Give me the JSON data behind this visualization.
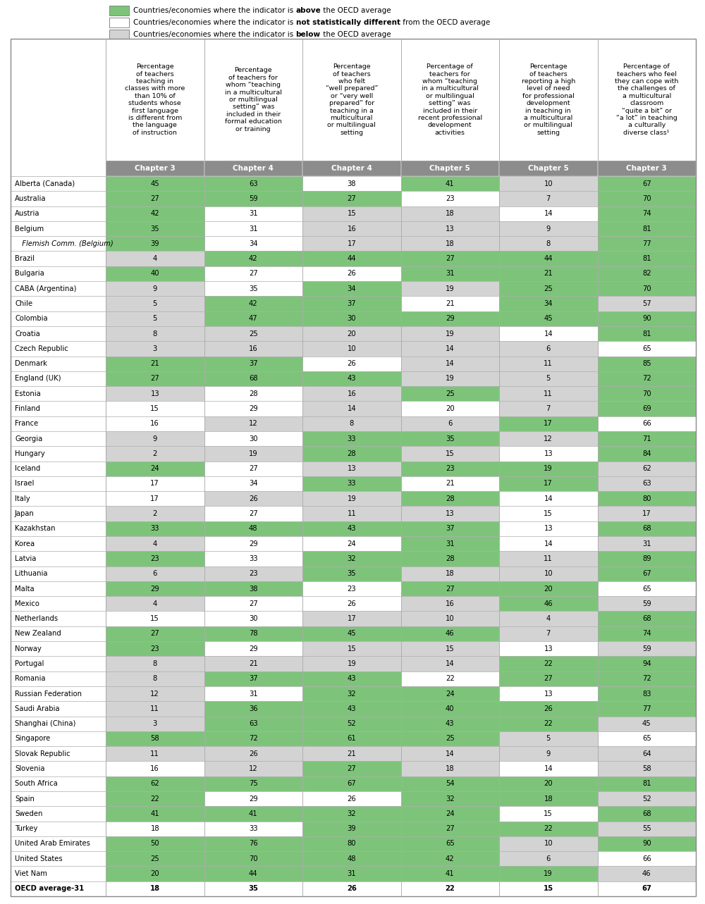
{
  "columns": [
    "Percentage\nof teachers\nteaching in\nclasses with more\nthan 10% of\nstudents whose\nfirst language\nis different from\nthe language\nof instruction",
    "Percentage\nof teachers for\nwhom “teaching\nin a multicultural\nor multilingual\nsetting” was\nincluded in their\nformal education\nor training",
    "Percentage\nof teachers\nwho felt\n“well prepared”\nor “very well\nprepared” for\nteaching in a\nmulticultural\nor multilingual\nsetting",
    "Percentage of\nteachers for\nwhom “teaching\nin a multicultural\nor multilingual\nsetting” was\nincluded in their\nrecent professional\ndevelopment\nactivities",
    "Percentage\nof teachers\nreporting a high\nlevel of need\nfor professional\ndevelopment\nin teaching in\na multicultural\nor multilingual\nsetting",
    "Percentage of\nteachers who feel\nthey can cope with\nthe challenges of\na multicultural\nclassroom\n“quite a bit” or\n“a lot” in teaching\na culturally\ndiverse class¹"
  ],
  "chapter_labels": [
    "Chapter 3",
    "Chapter 4",
    "Chapter 4",
    "Chapter 5",
    "Chapter 5",
    "Chapter 3"
  ],
  "rows": [
    {
      "country": "Alberta (Canada)",
      "values": [
        45,
        63,
        38,
        41,
        10,
        67
      ],
      "colors": [
        "#7DC47A",
        "#7DC47A",
        "#FFFFFF",
        "#7DC47A",
        "#D3D3D3",
        "#7DC47A"
      ],
      "italic": false,
      "bold": false
    },
    {
      "country": "Australia",
      "values": [
        27,
        59,
        27,
        23,
        7,
        70
      ],
      "colors": [
        "#7DC47A",
        "#7DC47A",
        "#7DC47A",
        "#FFFFFF",
        "#D3D3D3",
        "#7DC47A"
      ],
      "italic": false,
      "bold": false
    },
    {
      "country": "Austria",
      "values": [
        42,
        31,
        15,
        18,
        14,
        74
      ],
      "colors": [
        "#7DC47A",
        "#FFFFFF",
        "#D3D3D3",
        "#D3D3D3",
        "#FFFFFF",
        "#7DC47A"
      ],
      "italic": false,
      "bold": false
    },
    {
      "country": "Belgium",
      "values": [
        35,
        31,
        16,
        13,
        9,
        81
      ],
      "colors": [
        "#7DC47A",
        "#FFFFFF",
        "#D3D3D3",
        "#D3D3D3",
        "#D3D3D3",
        "#7DC47A"
      ],
      "italic": false,
      "bold": false
    },
    {
      "country": "  Flemish Comm. (Belgium)",
      "values": [
        39,
        34,
        17,
        18,
        8,
        77
      ],
      "colors": [
        "#7DC47A",
        "#FFFFFF",
        "#D3D3D3",
        "#D3D3D3",
        "#D3D3D3",
        "#7DC47A"
      ],
      "italic": true,
      "bold": false
    },
    {
      "country": "Brazil",
      "values": [
        4,
        42,
        44,
        27,
        44,
        81
      ],
      "colors": [
        "#D3D3D3",
        "#7DC47A",
        "#7DC47A",
        "#7DC47A",
        "#7DC47A",
        "#7DC47A"
      ],
      "italic": false,
      "bold": false
    },
    {
      "country": "Bulgaria",
      "values": [
        40,
        27,
        26,
        31,
        21,
        82
      ],
      "colors": [
        "#7DC47A",
        "#FFFFFF",
        "#FFFFFF",
        "#7DC47A",
        "#7DC47A",
        "#7DC47A"
      ],
      "italic": false,
      "bold": false
    },
    {
      "country": "CABA (Argentina)",
      "values": [
        9,
        35,
        34,
        19,
        25,
        70
      ],
      "colors": [
        "#D3D3D3",
        "#FFFFFF",
        "#7DC47A",
        "#D3D3D3",
        "#7DC47A",
        "#7DC47A"
      ],
      "italic": false,
      "bold": false
    },
    {
      "country": "Chile",
      "values": [
        5,
        42,
        37,
        21,
        34,
        57
      ],
      "colors": [
        "#D3D3D3",
        "#7DC47A",
        "#7DC47A",
        "#FFFFFF",
        "#7DC47A",
        "#D3D3D3"
      ],
      "italic": false,
      "bold": false
    },
    {
      "country": "Colombia",
      "values": [
        5,
        47,
        30,
        29,
        45,
        90
      ],
      "colors": [
        "#D3D3D3",
        "#7DC47A",
        "#7DC47A",
        "#7DC47A",
        "#7DC47A",
        "#7DC47A"
      ],
      "italic": false,
      "bold": false
    },
    {
      "country": "Croatia",
      "values": [
        8,
        25,
        20,
        19,
        14,
        81
      ],
      "colors": [
        "#D3D3D3",
        "#D3D3D3",
        "#D3D3D3",
        "#D3D3D3",
        "#FFFFFF",
        "#7DC47A"
      ],
      "italic": false,
      "bold": false
    },
    {
      "country": "Czech Republic",
      "values": [
        3,
        16,
        10,
        14,
        6,
        65
      ],
      "colors": [
        "#D3D3D3",
        "#D3D3D3",
        "#D3D3D3",
        "#D3D3D3",
        "#D3D3D3",
        "#FFFFFF"
      ],
      "italic": false,
      "bold": false
    },
    {
      "country": "Denmark",
      "values": [
        21,
        37,
        26,
        14,
        11,
        85
      ],
      "colors": [
        "#7DC47A",
        "#7DC47A",
        "#FFFFFF",
        "#D3D3D3",
        "#D3D3D3",
        "#7DC47A"
      ],
      "italic": false,
      "bold": false
    },
    {
      "country": "England (UK)",
      "values": [
        27,
        68,
        43,
        19,
        5,
        72
      ],
      "colors": [
        "#7DC47A",
        "#7DC47A",
        "#7DC47A",
        "#D3D3D3",
        "#D3D3D3",
        "#7DC47A"
      ],
      "italic": false,
      "bold": false
    },
    {
      "country": "Estonia",
      "values": [
        13,
        28,
        16,
        25,
        11,
        70
      ],
      "colors": [
        "#D3D3D3",
        "#FFFFFF",
        "#D3D3D3",
        "#7DC47A",
        "#D3D3D3",
        "#7DC47A"
      ],
      "italic": false,
      "bold": false
    },
    {
      "country": "Finland",
      "values": [
        15,
        29,
        14,
        20,
        7,
        69
      ],
      "colors": [
        "#FFFFFF",
        "#FFFFFF",
        "#D3D3D3",
        "#FFFFFF",
        "#D3D3D3",
        "#7DC47A"
      ],
      "italic": false,
      "bold": false
    },
    {
      "country": "France",
      "values": [
        16,
        12,
        8,
        6,
        17,
        66
      ],
      "colors": [
        "#FFFFFF",
        "#D3D3D3",
        "#D3D3D3",
        "#D3D3D3",
        "#7DC47A",
        "#FFFFFF"
      ],
      "italic": false,
      "bold": false
    },
    {
      "country": "Georgia",
      "values": [
        9,
        30,
        33,
        35,
        12,
        71
      ],
      "colors": [
        "#D3D3D3",
        "#FFFFFF",
        "#7DC47A",
        "#7DC47A",
        "#D3D3D3",
        "#7DC47A"
      ],
      "italic": false,
      "bold": false
    },
    {
      "country": "Hungary",
      "values": [
        2,
        19,
        28,
        15,
        13,
        84
      ],
      "colors": [
        "#D3D3D3",
        "#D3D3D3",
        "#7DC47A",
        "#D3D3D3",
        "#FFFFFF",
        "#7DC47A"
      ],
      "italic": false,
      "bold": false
    },
    {
      "country": "Iceland",
      "values": [
        24,
        27,
        13,
        23,
        19,
        62
      ],
      "colors": [
        "#7DC47A",
        "#FFFFFF",
        "#D3D3D3",
        "#7DC47A",
        "#7DC47A",
        "#D3D3D3"
      ],
      "italic": false,
      "bold": false
    },
    {
      "country": "Israel",
      "values": [
        17,
        34,
        33,
        21,
        17,
        63
      ],
      "colors": [
        "#FFFFFF",
        "#FFFFFF",
        "#7DC47A",
        "#FFFFFF",
        "#7DC47A",
        "#D3D3D3"
      ],
      "italic": false,
      "bold": false
    },
    {
      "country": "Italy",
      "values": [
        17,
        26,
        19,
        28,
        14,
        80
      ],
      "colors": [
        "#FFFFFF",
        "#D3D3D3",
        "#D3D3D3",
        "#7DC47A",
        "#FFFFFF",
        "#7DC47A"
      ],
      "italic": false,
      "bold": false
    },
    {
      "country": "Japan",
      "values": [
        2,
        27,
        11,
        13,
        15,
        17
      ],
      "colors": [
        "#D3D3D3",
        "#FFFFFF",
        "#D3D3D3",
        "#D3D3D3",
        "#FFFFFF",
        "#D3D3D3"
      ],
      "italic": false,
      "bold": false
    },
    {
      "country": "Kazakhstan",
      "values": [
        33,
        48,
        43,
        37,
        13,
        68
      ],
      "colors": [
        "#7DC47A",
        "#7DC47A",
        "#7DC47A",
        "#7DC47A",
        "#FFFFFF",
        "#7DC47A"
      ],
      "italic": false,
      "bold": false
    },
    {
      "country": "Korea",
      "values": [
        4,
        29,
        24,
        31,
        14,
        31
      ],
      "colors": [
        "#D3D3D3",
        "#FFFFFF",
        "#FFFFFF",
        "#7DC47A",
        "#FFFFFF",
        "#D3D3D3"
      ],
      "italic": false,
      "bold": false
    },
    {
      "country": "Latvia",
      "values": [
        23,
        33,
        32,
        28,
        11,
        89
      ],
      "colors": [
        "#7DC47A",
        "#FFFFFF",
        "#7DC47A",
        "#7DC47A",
        "#D3D3D3",
        "#7DC47A"
      ],
      "italic": false,
      "bold": false
    },
    {
      "country": "Lithuania",
      "values": [
        6,
        23,
        35,
        18,
        10,
        67
      ],
      "colors": [
        "#D3D3D3",
        "#D3D3D3",
        "#7DC47A",
        "#D3D3D3",
        "#D3D3D3",
        "#7DC47A"
      ],
      "italic": false,
      "bold": false
    },
    {
      "country": "Malta",
      "values": [
        29,
        38,
        23,
        27,
        20,
        65
      ],
      "colors": [
        "#7DC47A",
        "#7DC47A",
        "#FFFFFF",
        "#7DC47A",
        "#7DC47A",
        "#FFFFFF"
      ],
      "italic": false,
      "bold": false
    },
    {
      "country": "Mexico",
      "values": [
        4,
        27,
        26,
        16,
        46,
        59
      ],
      "colors": [
        "#D3D3D3",
        "#FFFFFF",
        "#FFFFFF",
        "#D3D3D3",
        "#7DC47A",
        "#D3D3D3"
      ],
      "italic": false,
      "bold": false
    },
    {
      "country": "Netherlands",
      "values": [
        15,
        30,
        17,
        10,
        4,
        68
      ],
      "colors": [
        "#FFFFFF",
        "#FFFFFF",
        "#D3D3D3",
        "#D3D3D3",
        "#D3D3D3",
        "#7DC47A"
      ],
      "italic": false,
      "bold": false
    },
    {
      "country": "New Zealand",
      "values": [
        27,
        78,
        45,
        46,
        7,
        74
      ],
      "colors": [
        "#7DC47A",
        "#7DC47A",
        "#7DC47A",
        "#7DC47A",
        "#D3D3D3",
        "#7DC47A"
      ],
      "italic": false,
      "bold": false
    },
    {
      "country": "Norway",
      "values": [
        23,
        29,
        15,
        15,
        13,
        59
      ],
      "colors": [
        "#7DC47A",
        "#FFFFFF",
        "#D3D3D3",
        "#D3D3D3",
        "#FFFFFF",
        "#D3D3D3"
      ],
      "italic": false,
      "bold": false
    },
    {
      "country": "Portugal",
      "values": [
        8,
        21,
        19,
        14,
        22,
        94
      ],
      "colors": [
        "#D3D3D3",
        "#D3D3D3",
        "#D3D3D3",
        "#D3D3D3",
        "#7DC47A",
        "#7DC47A"
      ],
      "italic": false,
      "bold": false
    },
    {
      "country": "Romania",
      "values": [
        8,
        37,
        43,
        22,
        27,
        72
      ],
      "colors": [
        "#D3D3D3",
        "#7DC47A",
        "#7DC47A",
        "#FFFFFF",
        "#7DC47A",
        "#7DC47A"
      ],
      "italic": false,
      "bold": false
    },
    {
      "country": "Russian Federation",
      "values": [
        12,
        31,
        32,
        24,
        13,
        83
      ],
      "colors": [
        "#D3D3D3",
        "#FFFFFF",
        "#7DC47A",
        "#7DC47A",
        "#FFFFFF",
        "#7DC47A"
      ],
      "italic": false,
      "bold": false
    },
    {
      "country": "Saudi Arabia",
      "values": [
        11,
        36,
        43,
        40,
        26,
        77
      ],
      "colors": [
        "#D3D3D3",
        "#7DC47A",
        "#7DC47A",
        "#7DC47A",
        "#7DC47A",
        "#7DC47A"
      ],
      "italic": false,
      "bold": false
    },
    {
      "country": "Shanghai (China)",
      "values": [
        3,
        63,
        52,
        43,
        22,
        45
      ],
      "colors": [
        "#D3D3D3",
        "#7DC47A",
        "#7DC47A",
        "#7DC47A",
        "#7DC47A",
        "#D3D3D3"
      ],
      "italic": false,
      "bold": false
    },
    {
      "country": "Singapore",
      "values": [
        58,
        72,
        61,
        25,
        5,
        65
      ],
      "colors": [
        "#7DC47A",
        "#7DC47A",
        "#7DC47A",
        "#7DC47A",
        "#D3D3D3",
        "#FFFFFF"
      ],
      "italic": false,
      "bold": false
    },
    {
      "country": "Slovak Republic",
      "values": [
        11,
        26,
        21,
        14,
        9,
        64
      ],
      "colors": [
        "#D3D3D3",
        "#D3D3D3",
        "#D3D3D3",
        "#D3D3D3",
        "#D3D3D3",
        "#D3D3D3"
      ],
      "italic": false,
      "bold": false
    },
    {
      "country": "Slovenia",
      "values": [
        16,
        12,
        27,
        18,
        14,
        58
      ],
      "colors": [
        "#FFFFFF",
        "#D3D3D3",
        "#7DC47A",
        "#D3D3D3",
        "#FFFFFF",
        "#D3D3D3"
      ],
      "italic": false,
      "bold": false
    },
    {
      "country": "South Africa",
      "values": [
        62,
        75,
        67,
        54,
        20,
        81
      ],
      "colors": [
        "#7DC47A",
        "#7DC47A",
        "#7DC47A",
        "#7DC47A",
        "#7DC47A",
        "#7DC47A"
      ],
      "italic": false,
      "bold": false
    },
    {
      "country": "Spain",
      "values": [
        22,
        29,
        26,
        32,
        18,
        52
      ],
      "colors": [
        "#7DC47A",
        "#FFFFFF",
        "#FFFFFF",
        "#7DC47A",
        "#7DC47A",
        "#D3D3D3"
      ],
      "italic": false,
      "bold": false
    },
    {
      "country": "Sweden",
      "values": [
        41,
        41,
        32,
        24,
        15,
        68
      ],
      "colors": [
        "#7DC47A",
        "#7DC47A",
        "#7DC47A",
        "#7DC47A",
        "#FFFFFF",
        "#7DC47A"
      ],
      "italic": false,
      "bold": false
    },
    {
      "country": "Turkey",
      "values": [
        18,
        33,
        39,
        27,
        22,
        55
      ],
      "colors": [
        "#FFFFFF",
        "#FFFFFF",
        "#7DC47A",
        "#7DC47A",
        "#7DC47A",
        "#D3D3D3"
      ],
      "italic": false,
      "bold": false
    },
    {
      "country": "United Arab Emirates",
      "values": [
        50,
        76,
        80,
        65,
        10,
        90
      ],
      "colors": [
        "#7DC47A",
        "#7DC47A",
        "#7DC47A",
        "#7DC47A",
        "#D3D3D3",
        "#7DC47A"
      ],
      "italic": false,
      "bold": false
    },
    {
      "country": "United States",
      "values": [
        25,
        70,
        48,
        42,
        6,
        66
      ],
      "colors": [
        "#7DC47A",
        "#7DC47A",
        "#7DC47A",
        "#7DC47A",
        "#D3D3D3",
        "#FFFFFF"
      ],
      "italic": false,
      "bold": false
    },
    {
      "country": "Viet Nam",
      "values": [
        20,
        44,
        31,
        41,
        19,
        46
      ],
      "colors": [
        "#7DC47A",
        "#7DC47A",
        "#7DC47A",
        "#7DC47A",
        "#7DC47A",
        "#D3D3D3"
      ],
      "italic": false,
      "bold": false
    },
    {
      "country": "OECD average-31",
      "values": [
        18,
        35,
        26,
        22,
        15,
        67
      ],
      "colors": [
        "#FFFFFF",
        "#FFFFFF",
        "#FFFFFF",
        "#FFFFFF",
        "#FFFFFF",
        "#FFFFFF"
      ],
      "italic": false,
      "bold": true
    }
  ],
  "green": "#7DC47A",
  "gray": "#D3D3D3",
  "white": "#FFFFFF",
  "chapter_bg": "#8C8C8C",
  "border_color": "#AAAAAA",
  "outer_border": "#888888"
}
